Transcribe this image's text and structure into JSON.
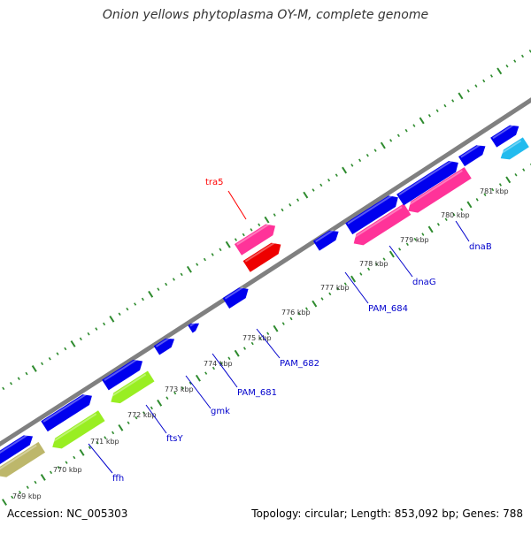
{
  "title": "Onion yellows phytoplasma OY-M, complete genome",
  "footer": {
    "accession": "Accession: NC_005303",
    "stats": "Topology: circular; Length: 853,092 bp; Genes: 788"
  },
  "colors": {
    "backbone": "#808080",
    "tick": "#2e8b2e",
    "label_blue": "#0000cc",
    "label_red": "#ff0000",
    "gene_blue": "#0000ee",
    "gene_pink": "#ff3399",
    "gene_red": "#ee0000",
    "gene_lime": "#99ee22",
    "gene_khaki": "#bdb76b",
    "gene_cyan": "#22bbee"
  },
  "kbp_labels": [
    "769 kbp",
    "770 kbp",
    "771 kbp",
    "772 kbp",
    "773 kbp",
    "774 kbp",
    "775 kbp",
    "776 kbp",
    "777 kbp",
    "778 kbp",
    "779 kbp",
    "780 kbp",
    "781 kbp"
  ],
  "gene_labels": [
    "ffh",
    "ftsY",
    "gmk",
    "PAM_681",
    "PAM_682",
    "PAM_684",
    "dnaG",
    "dnaB",
    "tra5"
  ]
}
